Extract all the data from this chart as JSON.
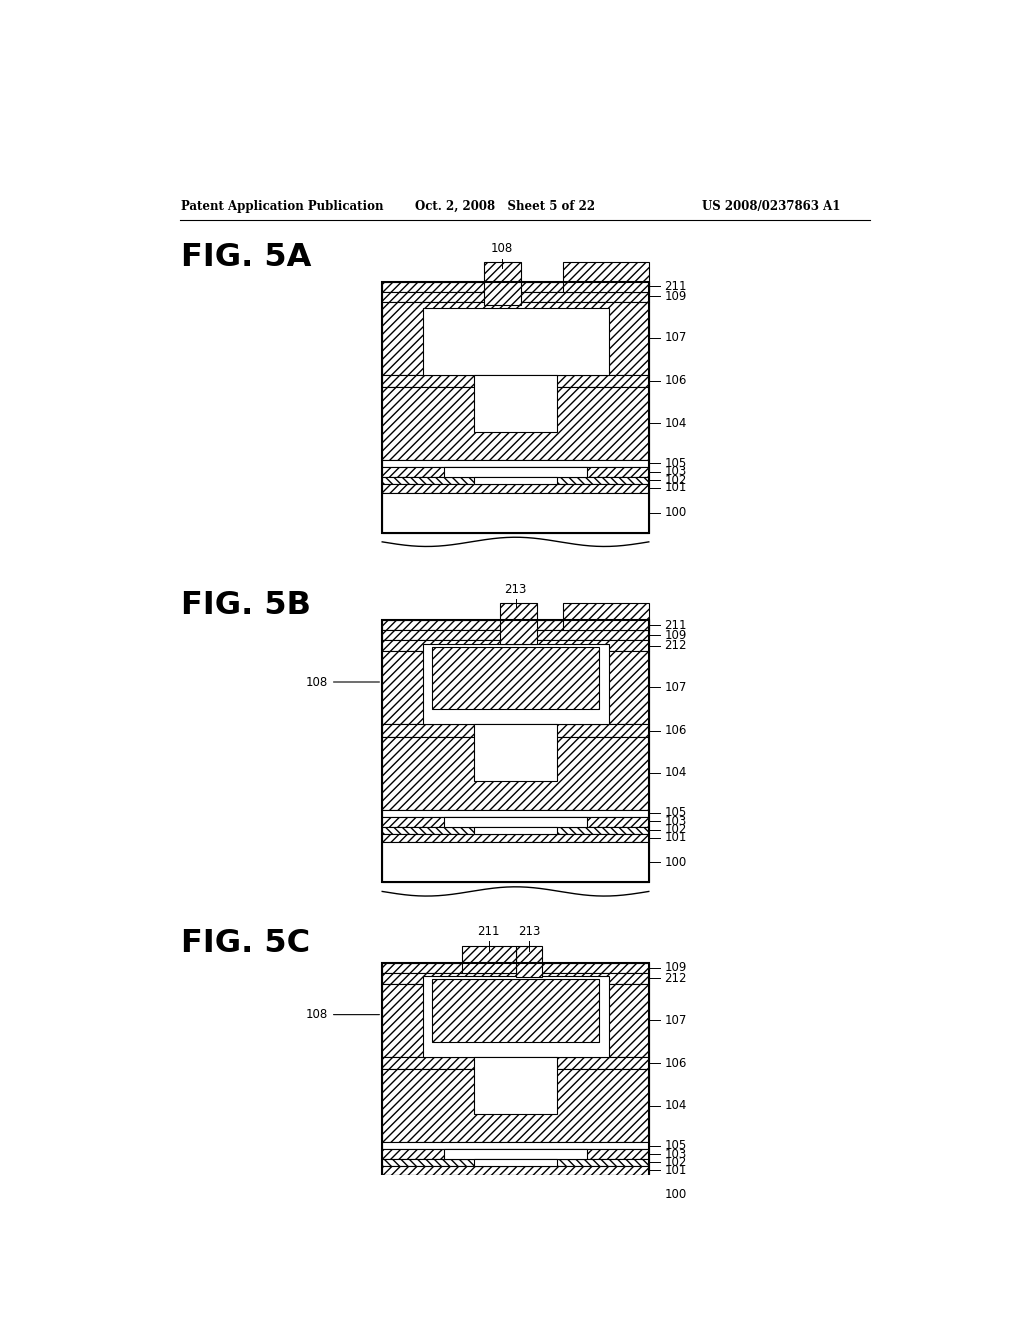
{
  "header_left": "Patent Application Publication",
  "header_mid": "Oct. 2, 2008   Sheet 5 of 22",
  "header_right": "US 2008/0237863 A1",
  "fig5a_label": "FIG. 5A",
  "fig5b_label": "FIG. 5B",
  "fig5c_label": "FIG. 5C",
  "background_color": "#ffffff",
  "line_color": "#000000"
}
